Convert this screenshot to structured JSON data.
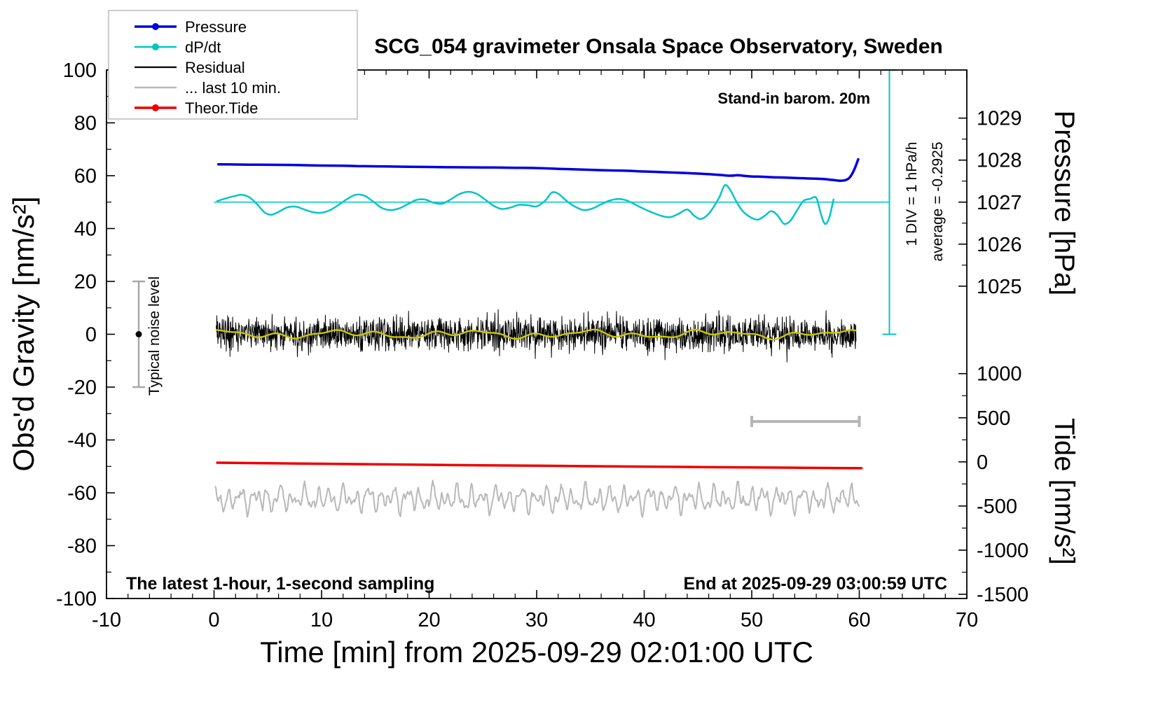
{
  "window": {
    "title": "SCG_054 gravimeter Onsala Space Observatory, Sweden"
  },
  "chart_data": {
    "type": "line",
    "title": "SCG_054 gravimeter Onsala Space Observatory, Sweden",
    "x_axis": {
      "label": "Time [min] from 2025-09-29 02:01:00 UTC",
      "min": -10,
      "max": 70,
      "major_step": 10,
      "minor_step": 2
    },
    "y_axis": {
      "label": "Obs'd Gravity [nm/s²]",
      "min": -100,
      "max": 100,
      "major_step": 20,
      "minor_step": 10
    },
    "pressure_axis": {
      "label": "Pressure [hPa]",
      "ticks": [
        {
          "v": "1029",
          "g": 81.8
        },
        {
          "v": "1028",
          "g": 65.9
        },
        {
          "v": "1027",
          "g": 50.0
        },
        {
          "v": "1026",
          "g": 34.1
        },
        {
          "v": "1025",
          "g": 18.2
        }
      ]
    },
    "tide_axis": {
      "label": "Tide [nm/s²]",
      "ticks": [
        {
          "v": "1000",
          "g": -14.9
        },
        {
          "v": "500",
          "g": -31.6
        },
        {
          "v": "0",
          "g": -48.3
        },
        {
          "v": "-500",
          "g": -65.0
        },
        {
          "v": "-1000",
          "g": -81.7
        },
        {
          "v": "-1500",
          "g": -98.4
        }
      ]
    },
    "legend": {
      "items": [
        {
          "label": "Pressure",
          "color": "#0000e0",
          "dot": true,
          "lw": 3.5
        },
        {
          "label": "dP/dt",
          "color": "#00c5c5",
          "dot": true,
          "lw": 2.5
        },
        {
          "label": "Residual",
          "color": "#000000",
          "dot": false,
          "lw": 2.2
        },
        {
          "label": "... last 10 min.",
          "color": "#b8b8b8",
          "dot": false,
          "lw": 2.5
        },
        {
          "label": "Theor.Tide",
          "color": "#ee0000",
          "dot": true,
          "lw": 3.5
        }
      ]
    },
    "annotations": {
      "standin": "Stand-in barom. 20m",
      "div_note": "1 DIV = 1 hPa/h",
      "average_note": "average = -0.2925",
      "noise_label": "Typical noise level",
      "sampling_note": "The latest 1-hour, 1-second sampling",
      "end_note": "End at 2025-09-29 03:00:59 UTC"
    },
    "series": {
      "pressure": {
        "name": "Pressure",
        "color": "#0000e0",
        "lw": 3.5,
        "points": [
          [
            0.4,
            64.3
          ],
          [
            2,
            64.25
          ],
          [
            4,
            64.15
          ],
          [
            6,
            64.1
          ],
          [
            8,
            64.0
          ],
          [
            10,
            63.85
          ],
          [
            12,
            63.75
          ],
          [
            14,
            63.6
          ],
          [
            16,
            63.5
          ],
          [
            18,
            63.4
          ],
          [
            20,
            63.3
          ],
          [
            22,
            63.2
          ],
          [
            24,
            63.15
          ],
          [
            26,
            63.1
          ],
          [
            28,
            63.0
          ],
          [
            30,
            62.9
          ],
          [
            32,
            62.6
          ],
          [
            34,
            62.35
          ],
          [
            36,
            62.1
          ],
          [
            38,
            61.9
          ],
          [
            40,
            61.6
          ],
          [
            42,
            61.3
          ],
          [
            44,
            61.0
          ],
          [
            45.5,
            60.7
          ],
          [
            47,
            60.3
          ],
          [
            48,
            60.0
          ],
          [
            48.7,
            60.2
          ],
          [
            49.4,
            59.9
          ],
          [
            50,
            59.7
          ],
          [
            51,
            59.6
          ],
          [
            52,
            59.4
          ],
          [
            53,
            59.3
          ],
          [
            54,
            59.15
          ],
          [
            55,
            59.0
          ],
          [
            56,
            58.9
          ],
          [
            56.8,
            58.7
          ],
          [
            57.5,
            58.4
          ],
          [
            58.2,
            58.1
          ],
          [
            58.7,
            58.3
          ],
          [
            59.1,
            59.3
          ],
          [
            59.5,
            62.0
          ],
          [
            59.9,
            66.2
          ]
        ]
      },
      "dpdt": {
        "name": "dP/dt",
        "color": "#00c5c5",
        "lw": 2.5,
        "ref_line_g": 50,
        "ref_x_start": 0,
        "ref_x_end": 62.8,
        "points": [
          [
            0.3,
            50.4
          ],
          [
            1,
            51.3
          ],
          [
            2,
            52.4
          ],
          [
            2.6,
            52.8
          ],
          [
            3.3,
            51.8
          ],
          [
            4,
            49.2
          ],
          [
            4.7,
            46.1
          ],
          [
            5.3,
            45.2
          ],
          [
            6,
            46.3
          ],
          [
            6.8,
            48.0
          ],
          [
            7.6,
            48.3
          ],
          [
            8.4,
            47.2
          ],
          [
            9.2,
            46.2
          ],
          [
            10,
            46.0
          ],
          [
            10.8,
            47.0
          ],
          [
            11.6,
            49.0
          ],
          [
            12.4,
            51.2
          ],
          [
            13.2,
            52.8
          ],
          [
            14,
            52.4
          ],
          [
            14.8,
            50.2
          ],
          [
            15.6,
            47.8
          ],
          [
            16.4,
            47.0
          ],
          [
            17.2,
            47.6
          ],
          [
            18,
            49.2
          ],
          [
            18.8,
            50.8
          ],
          [
            19.6,
            51.0
          ],
          [
            20.4,
            49.8
          ],
          [
            21.2,
            49.4
          ],
          [
            22,
            51.0
          ],
          [
            22.8,
            53.0
          ],
          [
            23.6,
            53.9
          ],
          [
            24.4,
            53.2
          ],
          [
            25.2,
            51.0
          ],
          [
            26,
            48.6
          ],
          [
            26.8,
            47.4
          ],
          [
            27.6,
            48.0
          ],
          [
            28.4,
            49.0
          ],
          [
            29.2,
            48.8
          ],
          [
            30,
            48.4
          ],
          [
            30.8,
            50.6
          ],
          [
            31.4,
            53.6
          ],
          [
            32,
            53.2
          ],
          [
            32.8,
            50.4
          ],
          [
            33.6,
            48.2
          ],
          [
            34.4,
            47.0
          ],
          [
            35.2,
            47.6
          ],
          [
            36,
            49.2
          ],
          [
            36.8,
            50.6
          ],
          [
            37.6,
            51.2
          ],
          [
            38.4,
            50.6
          ],
          [
            39.2,
            49.0
          ],
          [
            40,
            47.4
          ],
          [
            40.8,
            46.0
          ],
          [
            41.6,
            44.8
          ],
          [
            42.4,
            44.3
          ],
          [
            43.2,
            45.6
          ],
          [
            44,
            47.2
          ],
          [
            44.6,
            45.0
          ],
          [
            45.2,
            43.6
          ],
          [
            45.8,
            44.8
          ],
          [
            46.4,
            47.8
          ],
          [
            47,
            52.0
          ],
          [
            47.5,
            56.4
          ],
          [
            48,
            54.6
          ],
          [
            48.6,
            50.0
          ],
          [
            49.2,
            46.4
          ],
          [
            50,
            44.0
          ],
          [
            50.6,
            43.4
          ],
          [
            51.2,
            44.8
          ],
          [
            51.8,
            46.6
          ],
          [
            52.4,
            45.0
          ],
          [
            53,
            41.8
          ],
          [
            53.6,
            43.0
          ],
          [
            54.2,
            46.8
          ],
          [
            54.8,
            50.4
          ],
          [
            55.4,
            51.2
          ],
          [
            56,
            51.6
          ],
          [
            56.4,
            46.0
          ],
          [
            56.8,
            41.8
          ],
          [
            57.2,
            44.0
          ],
          [
            57.6,
            51.0
          ]
        ]
      },
      "residual": {
        "name": "Residual",
        "color": "#000000",
        "lw": 1,
        "x0": 0.2,
        "x1": 59.7,
        "n": 1900,
        "base": 0,
        "std": 3.2,
        "seed": 12345,
        "spike_prob": 0.015,
        "spike_mult": 2.2,
        "clamp": 13
      },
      "residual_smooth": {
        "name": "Residual smoothed",
        "color": "#c8c800",
        "lw": 2.4,
        "x0": 0.2,
        "x1": 59.7,
        "n": 400,
        "base": 0,
        "sines": [
          [
            0.9,
            0.55,
            1.2
          ],
          [
            0.7,
            1.3,
            0.3
          ],
          [
            0.5,
            2.1,
            2.0
          ]
        ]
      },
      "theor_tide": {
        "name": "Theor.Tide",
        "color": "#ee0000",
        "lw": 3.5,
        "points": [
          [
            0.3,
            -48.6
          ],
          [
            10,
            -49.0
          ],
          [
            20,
            -49.4
          ],
          [
            30,
            -49.75
          ],
          [
            40,
            -50.1
          ],
          [
            50,
            -50.4
          ],
          [
            60.2,
            -50.7
          ]
        ]
      },
      "last10": {
        "name": "... last 10 min.",
        "color": "#b8b8b8",
        "lw": 2,
        "x0": 0.1,
        "x1": 60,
        "n": 800,
        "base": -62.3,
        "noise_std": 0.5,
        "seed": 77,
        "sines": [
          [
            2.6,
            5.3,
            0.7
          ],
          [
            2.1,
            8.9,
            2.1
          ],
          [
            1.4,
            3.1,
            1.1
          ],
          [
            1.0,
            13.7,
            0.0
          ]
        ]
      }
    },
    "markers": {
      "noise_bar": {
        "x": -7,
        "g_min": -20,
        "g_max": 20,
        "dot_g": 0,
        "color": "#a8a8a8"
      },
      "scale_bar": {
        "g": -33,
        "x_min": 50,
        "x_max": 60,
        "color": "#b4b4b4"
      },
      "div_axis": {
        "x": 62.8,
        "g_min": 0,
        "g_max": 100,
        "color": "#00c5c5"
      }
    }
  }
}
